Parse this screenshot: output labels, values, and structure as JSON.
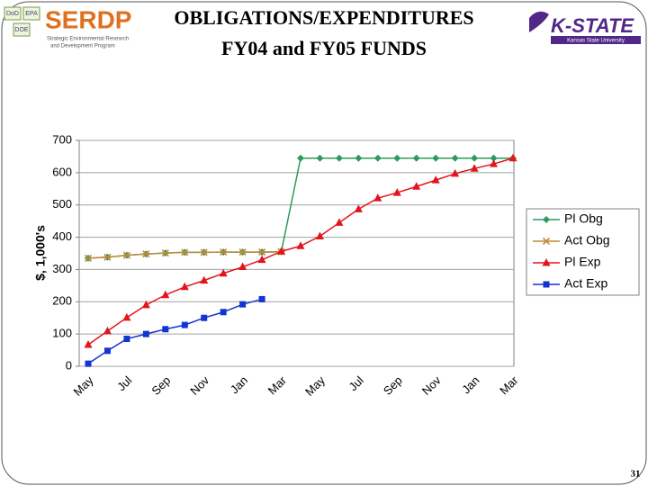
{
  "header": {
    "title_line1": "OBLIGATIONS/EXPENDITURES",
    "title_line2": "FY04 and FY05 FUNDS",
    "logo_left": {
      "agencies": [
        "DoD",
        "EPA",
        "DOE"
      ],
      "name": "SERDP",
      "tagline1": "Strategic Environmental Research",
      "tagline2": "and Development Program"
    },
    "logo_right": {
      "name": "K-STATE",
      "tagline": "Kansas State University"
    }
  },
  "page_number": "31",
  "chart_data": {
    "type": "line",
    "ylabel": "$, 1,000's",
    "categories": [
      "May",
      null,
      "Jul",
      null,
      "Sep",
      null,
      "Nov",
      null,
      "Jan",
      null,
      "Mar",
      null,
      "May",
      null,
      "Jul",
      null,
      "Sep",
      null,
      "Nov",
      null,
      "Jan",
      null,
      "Mar"
    ],
    "ylim": [
      0,
      700
    ],
    "yticks": [
      0,
      100,
      200,
      300,
      400,
      500,
      600,
      700
    ],
    "grid": true,
    "legend": "right",
    "series": [
      {
        "name": "Pl Obg",
        "color": "#2e9a5e",
        "marker": "diamond",
        "values": [
          335,
          338,
          344,
          348,
          351,
          353,
          353,
          354,
          354,
          354,
          355,
          645,
          645,
          645,
          645,
          645,
          645,
          645,
          645,
          645,
          645,
          645,
          645
        ]
      },
      {
        "name": "Act Obg",
        "color": "#c08a3a",
        "marker": "x",
        "values": [
          335,
          338,
          344,
          348,
          351,
          353,
          353,
          354,
          354,
          354,
          355,
          null,
          null,
          null,
          null,
          null,
          null,
          null,
          null,
          null,
          null,
          null,
          null
        ]
      },
      {
        "name": "Pl Exp",
        "color": "#e3141c",
        "marker": "triangle",
        "values": [
          67,
          109,
          151,
          190,
          221,
          246,
          266,
          288,
          308,
          330,
          356,
          373,
          403,
          445,
          487,
          521,
          538,
          557,
          577,
          597,
          613,
          627,
          645
        ]
      },
      {
        "name": "Act Exp",
        "color": "#1434d2",
        "marker": "square",
        "values": [
          8,
          48,
          85,
          100,
          115,
          128,
          150,
          168,
          192,
          208,
          null,
          null,
          null,
          null,
          null,
          null,
          null,
          null,
          null,
          null,
          null,
          null,
          null
        ]
      }
    ]
  }
}
